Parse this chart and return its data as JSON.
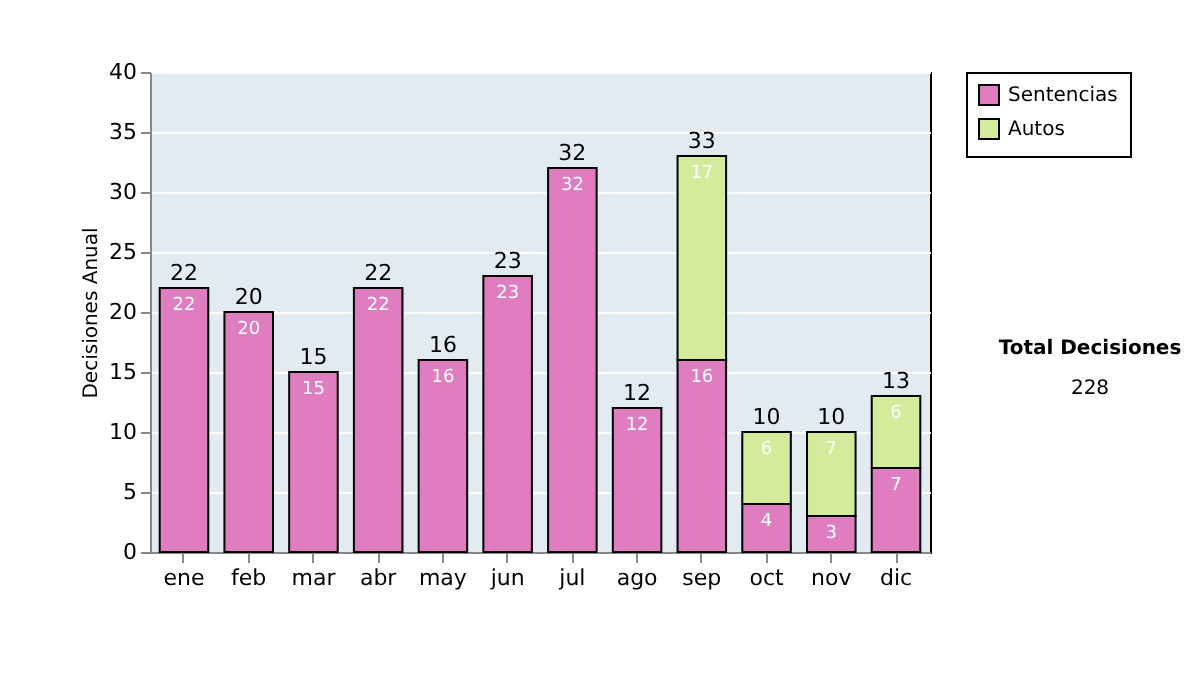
{
  "chart_data": {
    "type": "bar",
    "stacked": true,
    "ylabel": "Decisiones Anual",
    "categories": [
      "ene",
      "feb",
      "mar",
      "abr",
      "may",
      "jun",
      "jul",
      "ago",
      "sep",
      "oct",
      "nov",
      "dic"
    ],
    "series": [
      {
        "name": "Sentencias",
        "color": "#e07cc0",
        "values": [
          22,
          20,
          15,
          22,
          16,
          23,
          32,
          12,
          16,
          4,
          3,
          7
        ]
      },
      {
        "name": "Autos",
        "color": "#d4eb9c",
        "values": [
          null,
          null,
          null,
          null,
          null,
          null,
          null,
          null,
          17,
          6,
          7,
          6
        ]
      }
    ],
    "data_labels": true,
    "totals": [
      "22",
      "20",
      "15",
      "22",
      "16",
      "23",
      "32",
      "12",
      "33",
      "10",
      "10",
      "13"
    ],
    "ylim": [
      0,
      40
    ],
    "yticks": [
      0,
      5,
      10,
      15,
      20,
      25,
      30,
      35,
      40
    ],
    "grid": "y",
    "legend": "right",
    "annotations": [
      "Total Decisiones",
      "228"
    ]
  }
}
